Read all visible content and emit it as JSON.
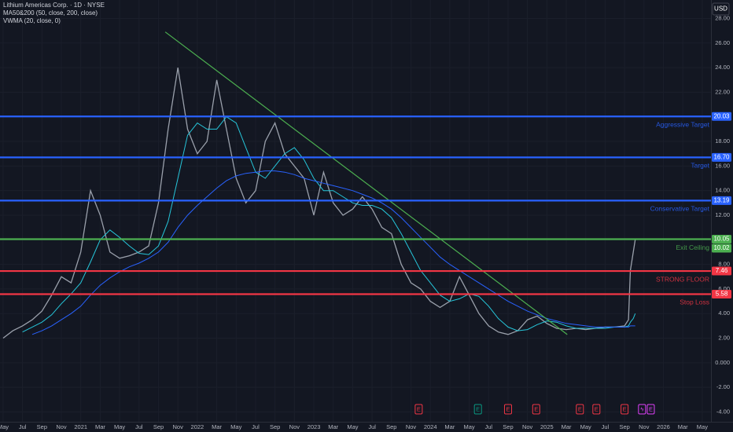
{
  "chart_data": {
    "type": "line",
    "legend_lines": [
      "Lithium Americas Corp. · 1D · NYSE",
      "MA50&200 (50, close, 200, close)",
      "VWMA (20, close, 0)"
    ],
    "currency": "USD",
    "grid": true,
    "xlim": [
      -0.32,
      72.9
    ],
    "ylim": [
      -4.8,
      29.5
    ],
    "xticks": [
      {
        "value": 0,
        "label": "May"
      },
      {
        "value": 2,
        "label": "Jul"
      },
      {
        "value": 4,
        "label": "Sep"
      },
      {
        "value": 6,
        "label": "Nov"
      },
      {
        "value": 8,
        "label": "2021"
      },
      {
        "value": 10,
        "label": "Mar"
      },
      {
        "value": 12,
        "label": "May"
      },
      {
        "value": 14,
        "label": "Jul"
      },
      {
        "value": 16,
        "label": "Sep"
      },
      {
        "value": 18,
        "label": "Nov"
      },
      {
        "value": 20,
        "label": "2022"
      },
      {
        "value": 22,
        "label": "Mar"
      },
      {
        "value": 24,
        "label": "May"
      },
      {
        "value": 26,
        "label": "Jul"
      },
      {
        "value": 28,
        "label": "Sep"
      },
      {
        "value": 30,
        "label": "Nov"
      },
      {
        "value": 32,
        "label": "2023"
      },
      {
        "value": 34,
        "label": "Mar"
      },
      {
        "value": 36,
        "label": "May"
      },
      {
        "value": 38,
        "label": "Jul"
      },
      {
        "value": 40,
        "label": "Sep"
      },
      {
        "value": 42,
        "label": "Nov"
      },
      {
        "value": 44,
        "label": "2024"
      },
      {
        "value": 46,
        "label": "Mar"
      },
      {
        "value": 48,
        "label": "May"
      },
      {
        "value": 50,
        "label": "Jul"
      },
      {
        "value": 52,
        "label": "Sep"
      },
      {
        "value": 54,
        "label": "Nov"
      },
      {
        "value": 56,
        "label": "2025"
      },
      {
        "value": 58,
        "label": "Mar"
      },
      {
        "value": 60,
        "label": "May"
      },
      {
        "value": 62,
        "label": "Jul"
      },
      {
        "value": 64,
        "label": "Sep"
      },
      {
        "value": 66,
        "label": "Nov"
      },
      {
        "value": 68,
        "label": "2026"
      },
      {
        "value": 70,
        "label": "Mar"
      },
      {
        "value": 72,
        "label": "May"
      }
    ],
    "yticks": [
      {
        "value": 28,
        "label": "28.00"
      },
      {
        "value": 26,
        "label": "26.00"
      },
      {
        "value": 24,
        "label": "24.00"
      },
      {
        "value": 22,
        "label": "22.00"
      },
      {
        "value": 20,
        "label": "20.00"
      },
      {
        "value": 18,
        "label": "18.00"
      },
      {
        "value": 16,
        "label": "16.00"
      },
      {
        "value": 14,
        "label": "14.00"
      },
      {
        "value": 12,
        "label": "12.00"
      },
      {
        "value": 10,
        "label": "10.00"
      },
      {
        "value": 8,
        "label": "8.00"
      },
      {
        "value": 6,
        "label": "6.00"
      },
      {
        "value": 4,
        "label": "4.00"
      },
      {
        "value": 2,
        "label": "2.00"
      },
      {
        "value": 0,
        "label": "0.000"
      },
      {
        "value": -2,
        "label": "-2.00"
      },
      {
        "value": -4,
        "label": "-4.00"
      }
    ],
    "x": [
      0,
      1,
      2,
      3,
      4,
      5,
      6,
      7,
      8,
      9,
      10,
      11,
      12,
      13,
      14,
      15,
      16,
      17,
      18,
      19,
      20,
      21,
      22,
      23,
      24,
      25,
      26,
      27,
      28,
      29,
      30,
      31,
      32,
      33,
      34,
      35,
      36,
      37,
      38,
      39,
      40,
      41,
      42,
      43,
      44,
      45,
      46,
      47,
      48,
      49,
      50,
      51,
      52,
      53,
      54,
      55,
      56,
      57,
      58,
      59,
      60,
      61,
      62,
      63,
      64,
      64.4,
      64.6,
      64.9,
      65.1
    ],
    "series": [
      {
        "color": "#9aa0ab",
        "values": [
          2.0,
          2.6,
          3.0,
          3.5,
          4.2,
          5.5,
          7.0,
          6.5,
          9.0,
          14.0,
          12.0,
          9.0,
          8.5,
          8.7,
          9.0,
          9.5,
          13.0,
          19.0,
          24.0,
          19.0,
          17.0,
          18.0,
          23.0,
          19.0,
          15.0,
          13.0,
          14.0,
          18.0,
          19.5,
          17.0,
          16.0,
          15.0,
          12.0,
          15.5,
          13.0,
          12.0,
          12.5,
          13.5,
          12.5,
          11.0,
          10.5,
          8.0,
          6.5,
          6.0,
          5.0,
          4.5,
          5.0,
          7.0,
          5.5,
          4.0,
          3.0,
          2.5,
          2.3,
          2.6,
          3.5,
          3.8,
          3.2,
          2.8,
          2.7,
          2.8,
          2.7,
          2.8,
          2.9,
          2.9,
          3.0,
          3.5,
          7.5,
          9.0,
          10.02
        ]
      },
      {
        "color": "#26c6da",
        "values": [
          null,
          null,
          2.5,
          2.9,
          3.3,
          3.9,
          4.8,
          5.6,
          6.5,
          8.2,
          10.0,
          10.8,
          10.2,
          9.5,
          8.9,
          8.8,
          9.5,
          11.5,
          15.0,
          18.5,
          19.5,
          19.0,
          19.0,
          20.0,
          19.5,
          17.5,
          15.5,
          15.0,
          16.0,
          17.0,
          17.5,
          16.5,
          15.0,
          14.0,
          14.0,
          13.5,
          13.0,
          12.8,
          12.8,
          12.5,
          11.8,
          10.5,
          9.0,
          7.5,
          6.5,
          5.5,
          5.0,
          5.2,
          5.6,
          5.4,
          4.6,
          3.6,
          2.9,
          2.6,
          2.7,
          3.1,
          3.4,
          3.3,
          3.0,
          2.8,
          2.8,
          2.8,
          2.8,
          2.9,
          2.9,
          3.0,
          3.3,
          3.6,
          4.0
        ]
      },
      {
        "color": "#2962ff",
        "values": [
          null,
          null,
          null,
          2.3,
          2.6,
          3.0,
          3.5,
          4.0,
          4.6,
          5.5,
          6.3,
          6.9,
          7.4,
          7.8,
          8.1,
          8.5,
          9.0,
          9.8,
          11.0,
          12.0,
          12.8,
          13.5,
          14.2,
          14.8,
          15.2,
          15.4,
          15.5,
          15.6,
          15.6,
          15.5,
          15.3,
          15.0,
          14.8,
          14.6,
          14.4,
          14.2,
          14.0,
          13.7,
          13.4,
          13.0,
          12.5,
          11.8,
          11.0,
          10.2,
          9.4,
          8.6,
          8.0,
          7.5,
          7.0,
          6.5,
          6.0,
          5.5,
          5.0,
          4.6,
          4.2,
          3.9,
          3.6,
          3.4,
          3.2,
          3.1,
          3.0,
          2.9,
          2.9,
          2.9,
          2.9,
          2.9,
          3.0,
          3.0,
          3.0
        ]
      }
    ],
    "trendline": {
      "x": [
        16.7,
        58.1
      ],
      "y": [
        26.9,
        2.3
      ],
      "color": "#4caf50"
    },
    "levels": [
      {
        "name": "Aggressive Target",
        "value": 20.03,
        "color": "#2962ff"
      },
      {
        "name": "Target",
        "value": 16.7,
        "value_label": "16.70",
        "color": "#2962ff"
      },
      {
        "name": "Conservative Target",
        "value": 13.19,
        "color": "#2962ff"
      },
      {
        "name": "Exit Ceiling",
        "value": 10.05,
        "color": "#4caf50"
      },
      {
        "name": "STRONG FLOOR",
        "value": 7.46,
        "color": "#f23645"
      },
      {
        "name": "Stop Loss",
        "value": 5.58,
        "color": "#f23645"
      }
    ],
    "last_price": {
      "value": 10.02,
      "color": "#4caf50"
    },
    "events": [
      {
        "x": 42.8,
        "label": "E",
        "color": "#f23645"
      },
      {
        "x": 48.9,
        "label": "E",
        "color": "#089981"
      },
      {
        "x": 52.0,
        "label": "E",
        "color": "#f23645"
      },
      {
        "x": 54.9,
        "label": "E",
        "color": "#f23645"
      },
      {
        "x": 59.4,
        "label": "E",
        "color": "#f23645"
      },
      {
        "x": 61.1,
        "label": "E",
        "color": "#f23645"
      },
      {
        "x": 64.0,
        "label": "E",
        "color": "#f23645"
      },
      {
        "x": 65.8,
        "label": "ϟ",
        "color": "#e040fb"
      },
      {
        "x": 66.7,
        "label": "E",
        "color": "#e040fb"
      }
    ]
  }
}
